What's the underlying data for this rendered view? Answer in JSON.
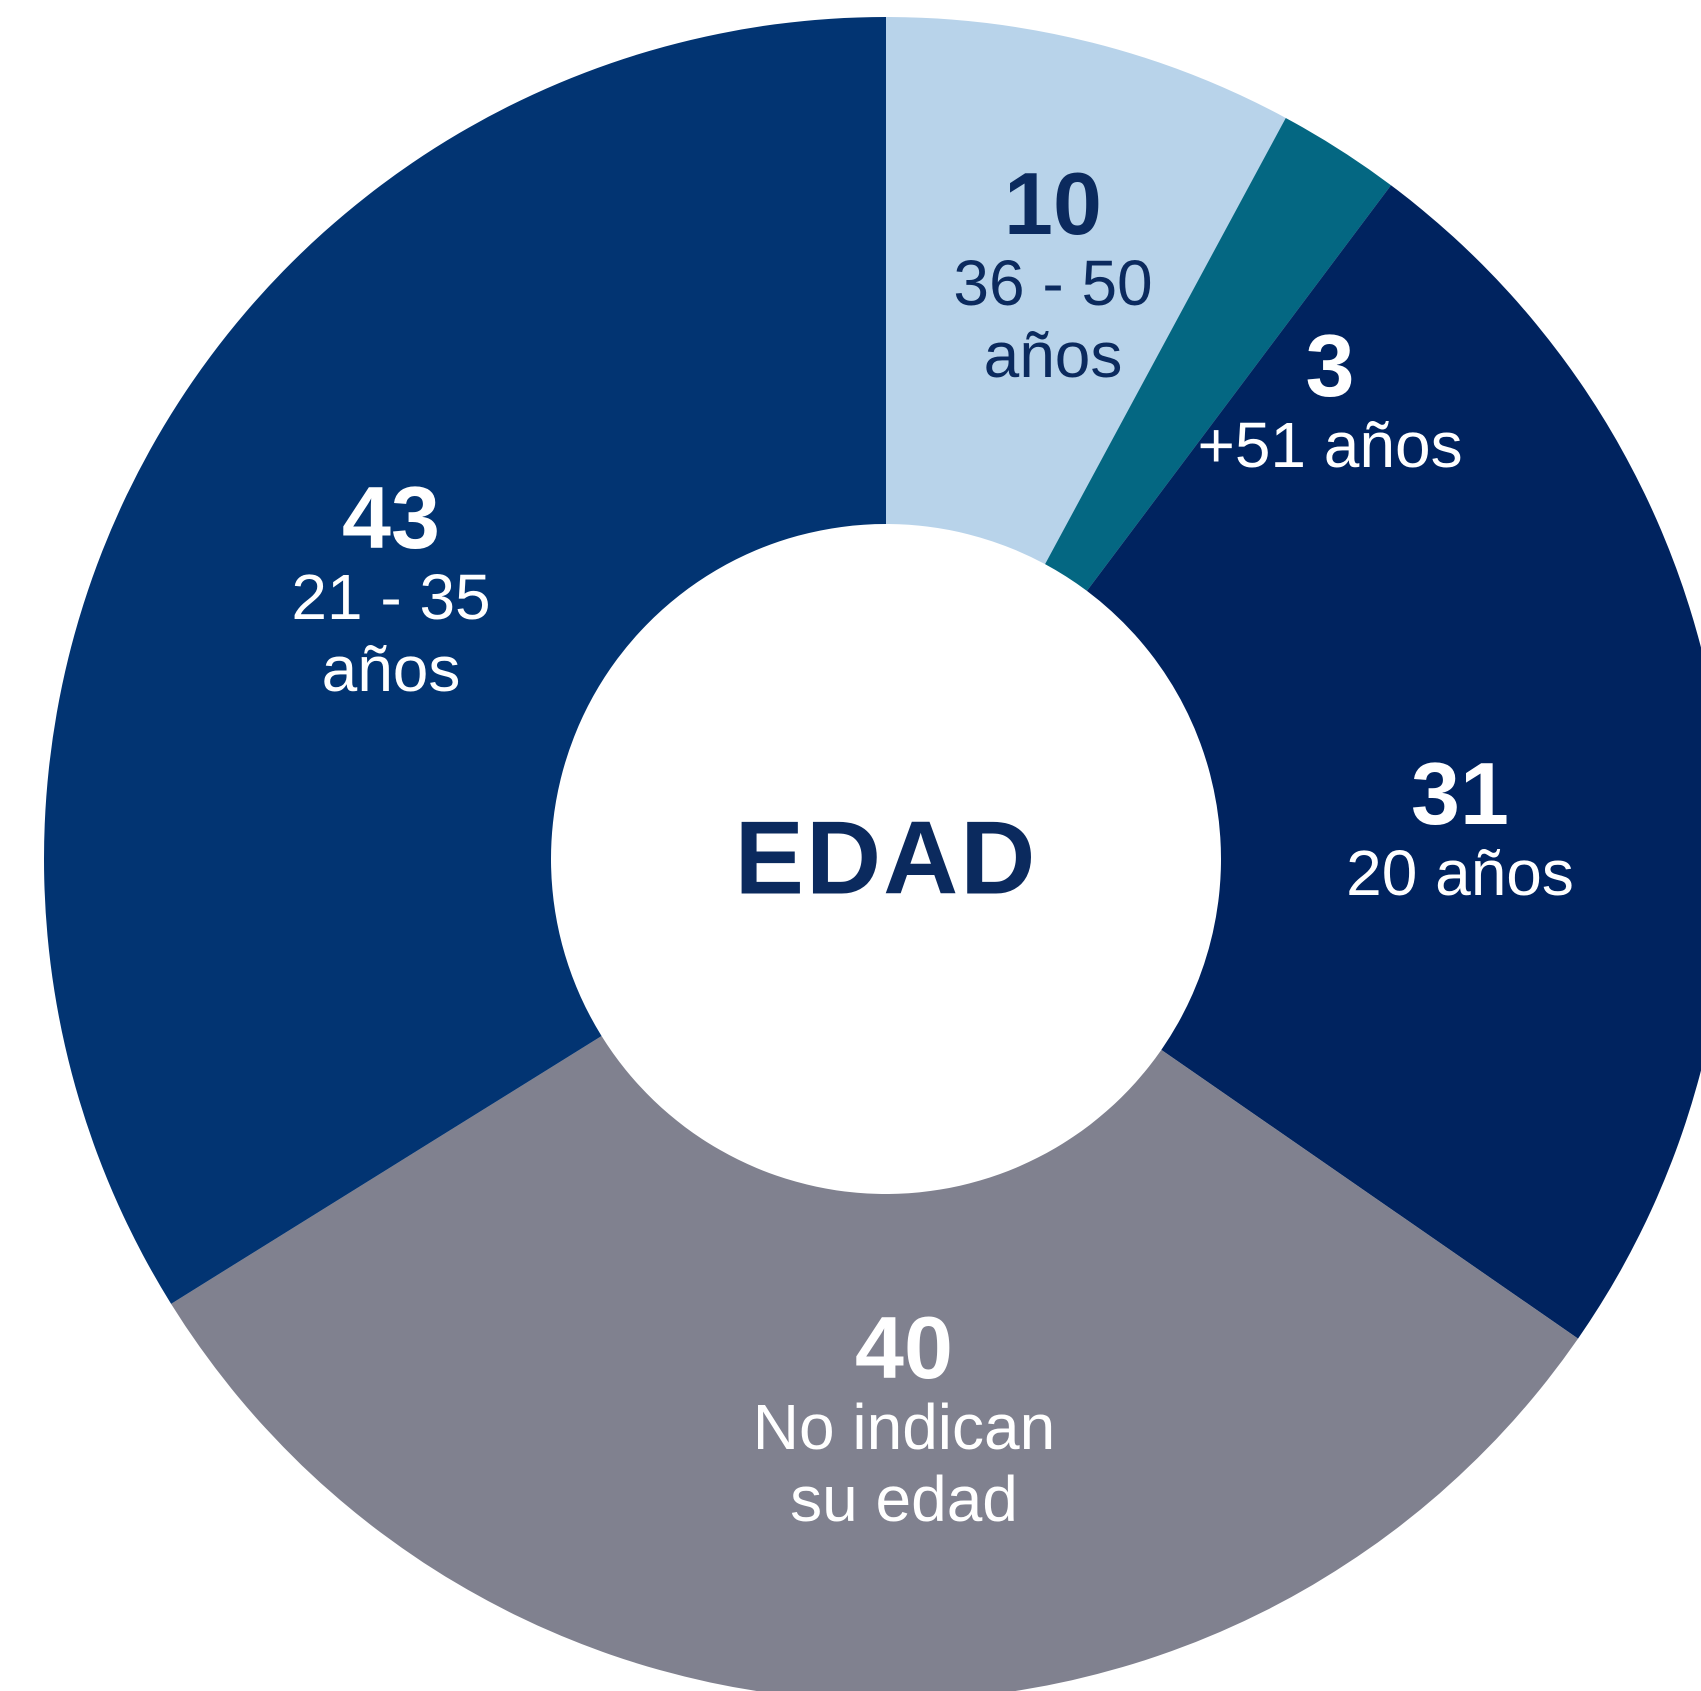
{
  "chart_data": {
    "type": "donut",
    "title": "EDAD",
    "categories": [
      "36 - 50 años",
      "+51 años",
      "20 años",
      "No indican su edad",
      "21 - 35 años"
    ],
    "values": [
      10,
      3,
      31,
      40,
      43
    ],
    "colors": [
      "#b8d3ea",
      "#046782",
      "#00235f",
      "#80818f",
      "#023472"
    ],
    "label_colors": [
      "#0b2a5e",
      "#ffffff",
      "#ffffff",
      "#ffffff",
      "#ffffff"
    ]
  }
}
